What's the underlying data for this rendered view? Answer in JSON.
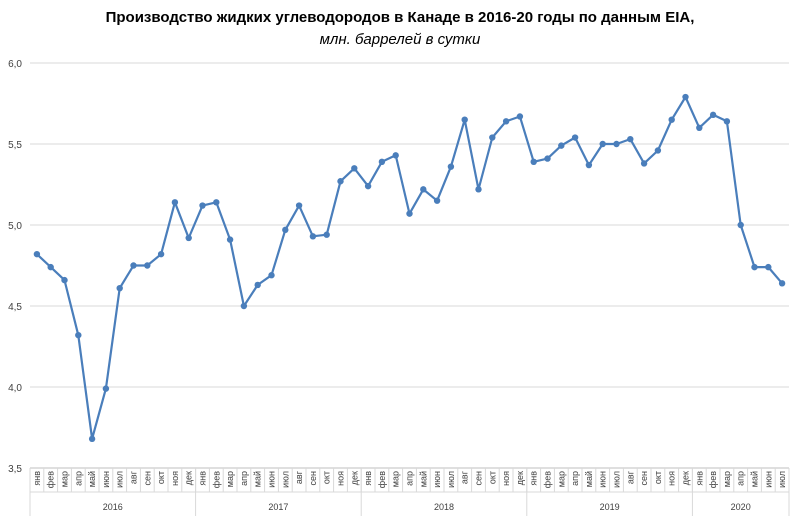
{
  "chart_data": {
    "type": "line",
    "title": "Производство  жидких  углеводородов  в Канаде в 2016-20 годы по данным  EIA,",
    "subtitle": "млн. баррелей в сутки",
    "xlabel": "",
    "ylabel": "",
    "ylim": [
      3.5,
      6.0
    ],
    "yticks": [
      "3,5",
      "4,0",
      "4,5",
      "5,0",
      "5,5",
      "6,0"
    ],
    "grid": true,
    "legend": "none",
    "color": "#4a7ebb",
    "years": [
      "2016",
      "2017",
      "2018",
      "2019",
      "2020"
    ],
    "months": [
      "янв",
      "фев",
      "мар",
      "апр",
      "май",
      "июн",
      "июл",
      "авг",
      "сен",
      "окт",
      "ноя",
      "дек"
    ],
    "categories": [
      "янв",
      "фев",
      "мар",
      "апр",
      "май",
      "июн",
      "июл",
      "авг",
      "сен",
      "окт",
      "ноя",
      "дек",
      "янв",
      "фев",
      "мар",
      "апр",
      "май",
      "июн",
      "июл",
      "авг",
      "сен",
      "окт",
      "ноя",
      "дек",
      "янв",
      "фев",
      "мар",
      "апр",
      "май",
      "июн",
      "июл",
      "авг",
      "сен",
      "окт",
      "ноя",
      "дек",
      "янв",
      "фев",
      "мар",
      "апр",
      "май",
      "июн",
      "июл",
      "авг",
      "сен",
      "окт",
      "ноя",
      "дек",
      "янв",
      "фев",
      "мар",
      "апр",
      "май",
      "июн",
      "июл"
    ],
    "series": [
      {
        "values": [
          4.82,
          4.74,
          4.66,
          4.32,
          3.68,
          3.99,
          4.61,
          4.75,
          4.75,
          4.82,
          5.14,
          4.92,
          5.12,
          5.14,
          4.91,
          4.5,
          4.63,
          4.69,
          4.97,
          5.12,
          4.93,
          4.94,
          5.27,
          5.35,
          5.24,
          5.39,
          5.43,
          5.07,
          5.22,
          5.15,
          5.36,
          5.65,
          5.22,
          5.54,
          5.64,
          5.67,
          5.39,
          5.41,
          5.49,
          5.54,
          5.37,
          5.5,
          5.5,
          5.53,
          5.38,
          5.46,
          5.65,
          5.79,
          5.6,
          5.68,
          5.64,
          5.0,
          4.74,
          4.74,
          4.64
        ]
      }
    ]
  }
}
